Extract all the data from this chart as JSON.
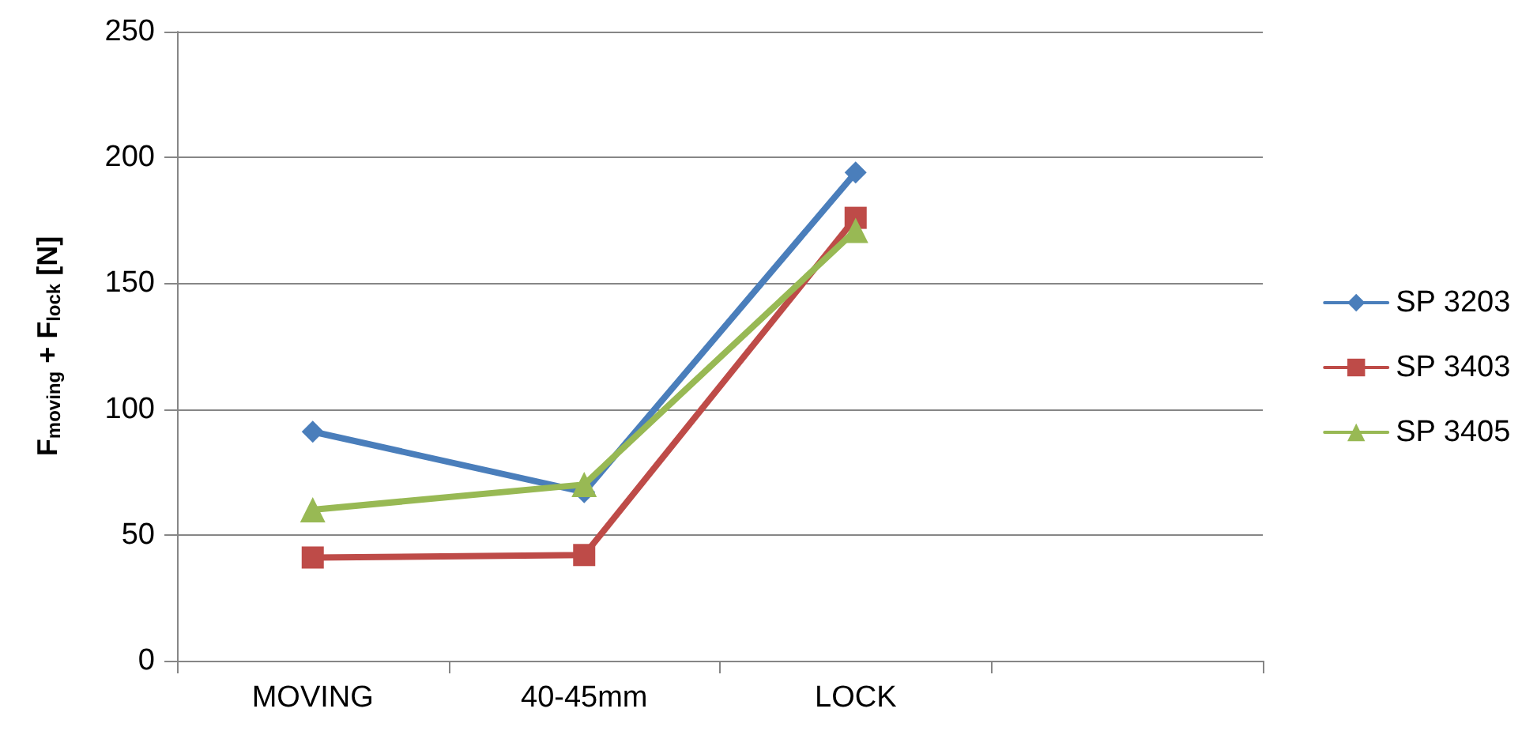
{
  "chart_data": {
    "type": "line",
    "ylabel": "F$_{moving}$ + F$_{lock}$ [N]",
    "categories": [
      "MOVING",
      "40-45mm",
      "LOCK",
      null
    ],
    "series": [
      {
        "name": "SP 3203",
        "color": "#4a7ebb",
        "marker": "diamond",
        "values": [
          91,
          67,
          194,
          null
        ]
      },
      {
        "name": "SP 3403",
        "color": "#be4b48",
        "marker": "square",
        "values": [
          41,
          42,
          176,
          null
        ]
      },
      {
        "name": "SP 3405",
        "color": "#98b954",
        "marker": "triangle",
        "values": [
          60,
          70,
          171,
          null
        ]
      }
    ],
    "ylim": [
      0,
      250
    ],
    "yticks": [
      0,
      50,
      100,
      150,
      200,
      250
    ],
    "grid": "y",
    "legend": "right",
    "line_style": "solid"
  }
}
